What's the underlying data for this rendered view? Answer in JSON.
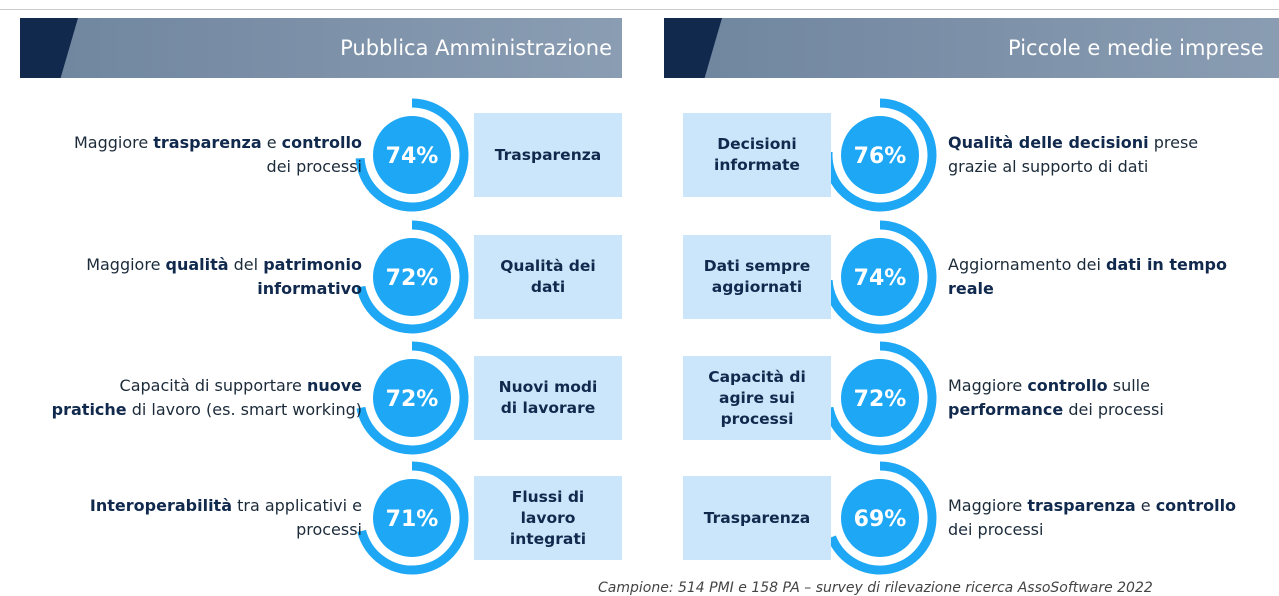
{
  "panels": [
    {
      "title": "Pubblica Amministrazione",
      "items": [
        {
          "description": [
            [
              {
                "text": "Maggiore "
              },
              {
                "text": "trasparenza",
                "bold": true
              },
              {
                "text": " e "
              },
              {
                "text": "controllo",
                "bold": true
              }
            ],
            [
              {
                "text": "dei processi"
              }
            ]
          ],
          "value": 74,
          "value_label": "74%",
          "tag": "Trasparenza"
        },
        {
          "description": [
            [
              {
                "text": "Maggiore "
              },
              {
                "text": "qualità",
                "bold": true
              },
              {
                "text": " del "
              },
              {
                "text": "patrimonio",
                "bold": true
              }
            ],
            [
              {
                "text": "informativo",
                "bold": true
              }
            ]
          ],
          "value": 72,
          "value_label": "72%",
          "tag": "Qualità dei dati"
        },
        {
          "description": [
            [
              {
                "text": "Capacità di supportare "
              },
              {
                "text": "nuove",
                "bold": true
              }
            ],
            [
              {
                "text": "pratiche",
                "bold": true
              },
              {
                "text": " di lavoro (es. smart working)"
              }
            ]
          ],
          "value": 72,
          "value_label": "72%",
          "tag": "Nuovi modi di lavorare"
        },
        {
          "description": [
            [
              {
                "text": "Interoperabilità",
                "bold": true
              },
              {
                "text": " tra applicativi e"
              }
            ],
            [
              {
                "text": "processi"
              }
            ]
          ],
          "value": 71,
          "value_label": "71%",
          "tag": "Flussi di lavoro integrati"
        }
      ]
    },
    {
      "title": "Piccole e medie imprese",
      "items": [
        {
          "description": [
            [
              {
                "text": "Qualità delle decisioni",
                "bold": true
              },
              {
                "text": " prese"
              }
            ],
            [
              {
                "text": "grazie al supporto di dati"
              }
            ]
          ],
          "value": 76,
          "value_label": "76%",
          "tag": "Decisioni informate"
        },
        {
          "description": [
            [
              {
                "text": "Aggiornamento dei "
              },
              {
                "text": "dati in tempo",
                "bold": true
              }
            ],
            [
              {
                "text": "reale",
                "bold": true
              }
            ]
          ],
          "value": 74,
          "value_label": "74%",
          "tag": "Dati sempre aggiornati"
        },
        {
          "description": [
            [
              {
                "text": "Maggiore "
              },
              {
                "text": "controllo",
                "bold": true
              },
              {
                "text": " sulle"
              }
            ],
            [
              {
                "text": "performance",
                "bold": true
              },
              {
                "text": " dei processi"
              }
            ]
          ],
          "value": 72,
          "value_label": "72%",
          "tag": "Capacità di agire sui processi"
        },
        {
          "description": [
            [
              {
                "text": "Maggiore "
              },
              {
                "text": "trasparenza",
                "bold": true
              },
              {
                "text": " e "
              },
              {
                "text": "controllo",
                "bold": true
              }
            ],
            [
              {
                "text": "dei processi"
              }
            ]
          ],
          "value": 69,
          "value_label": "69%",
          "tag": "Trasparenza"
        }
      ]
    }
  ],
  "footer": "Campione: 514 PMI e 158 PA – survey di rilevazione ricerca AssoSoftware 2022"
}
